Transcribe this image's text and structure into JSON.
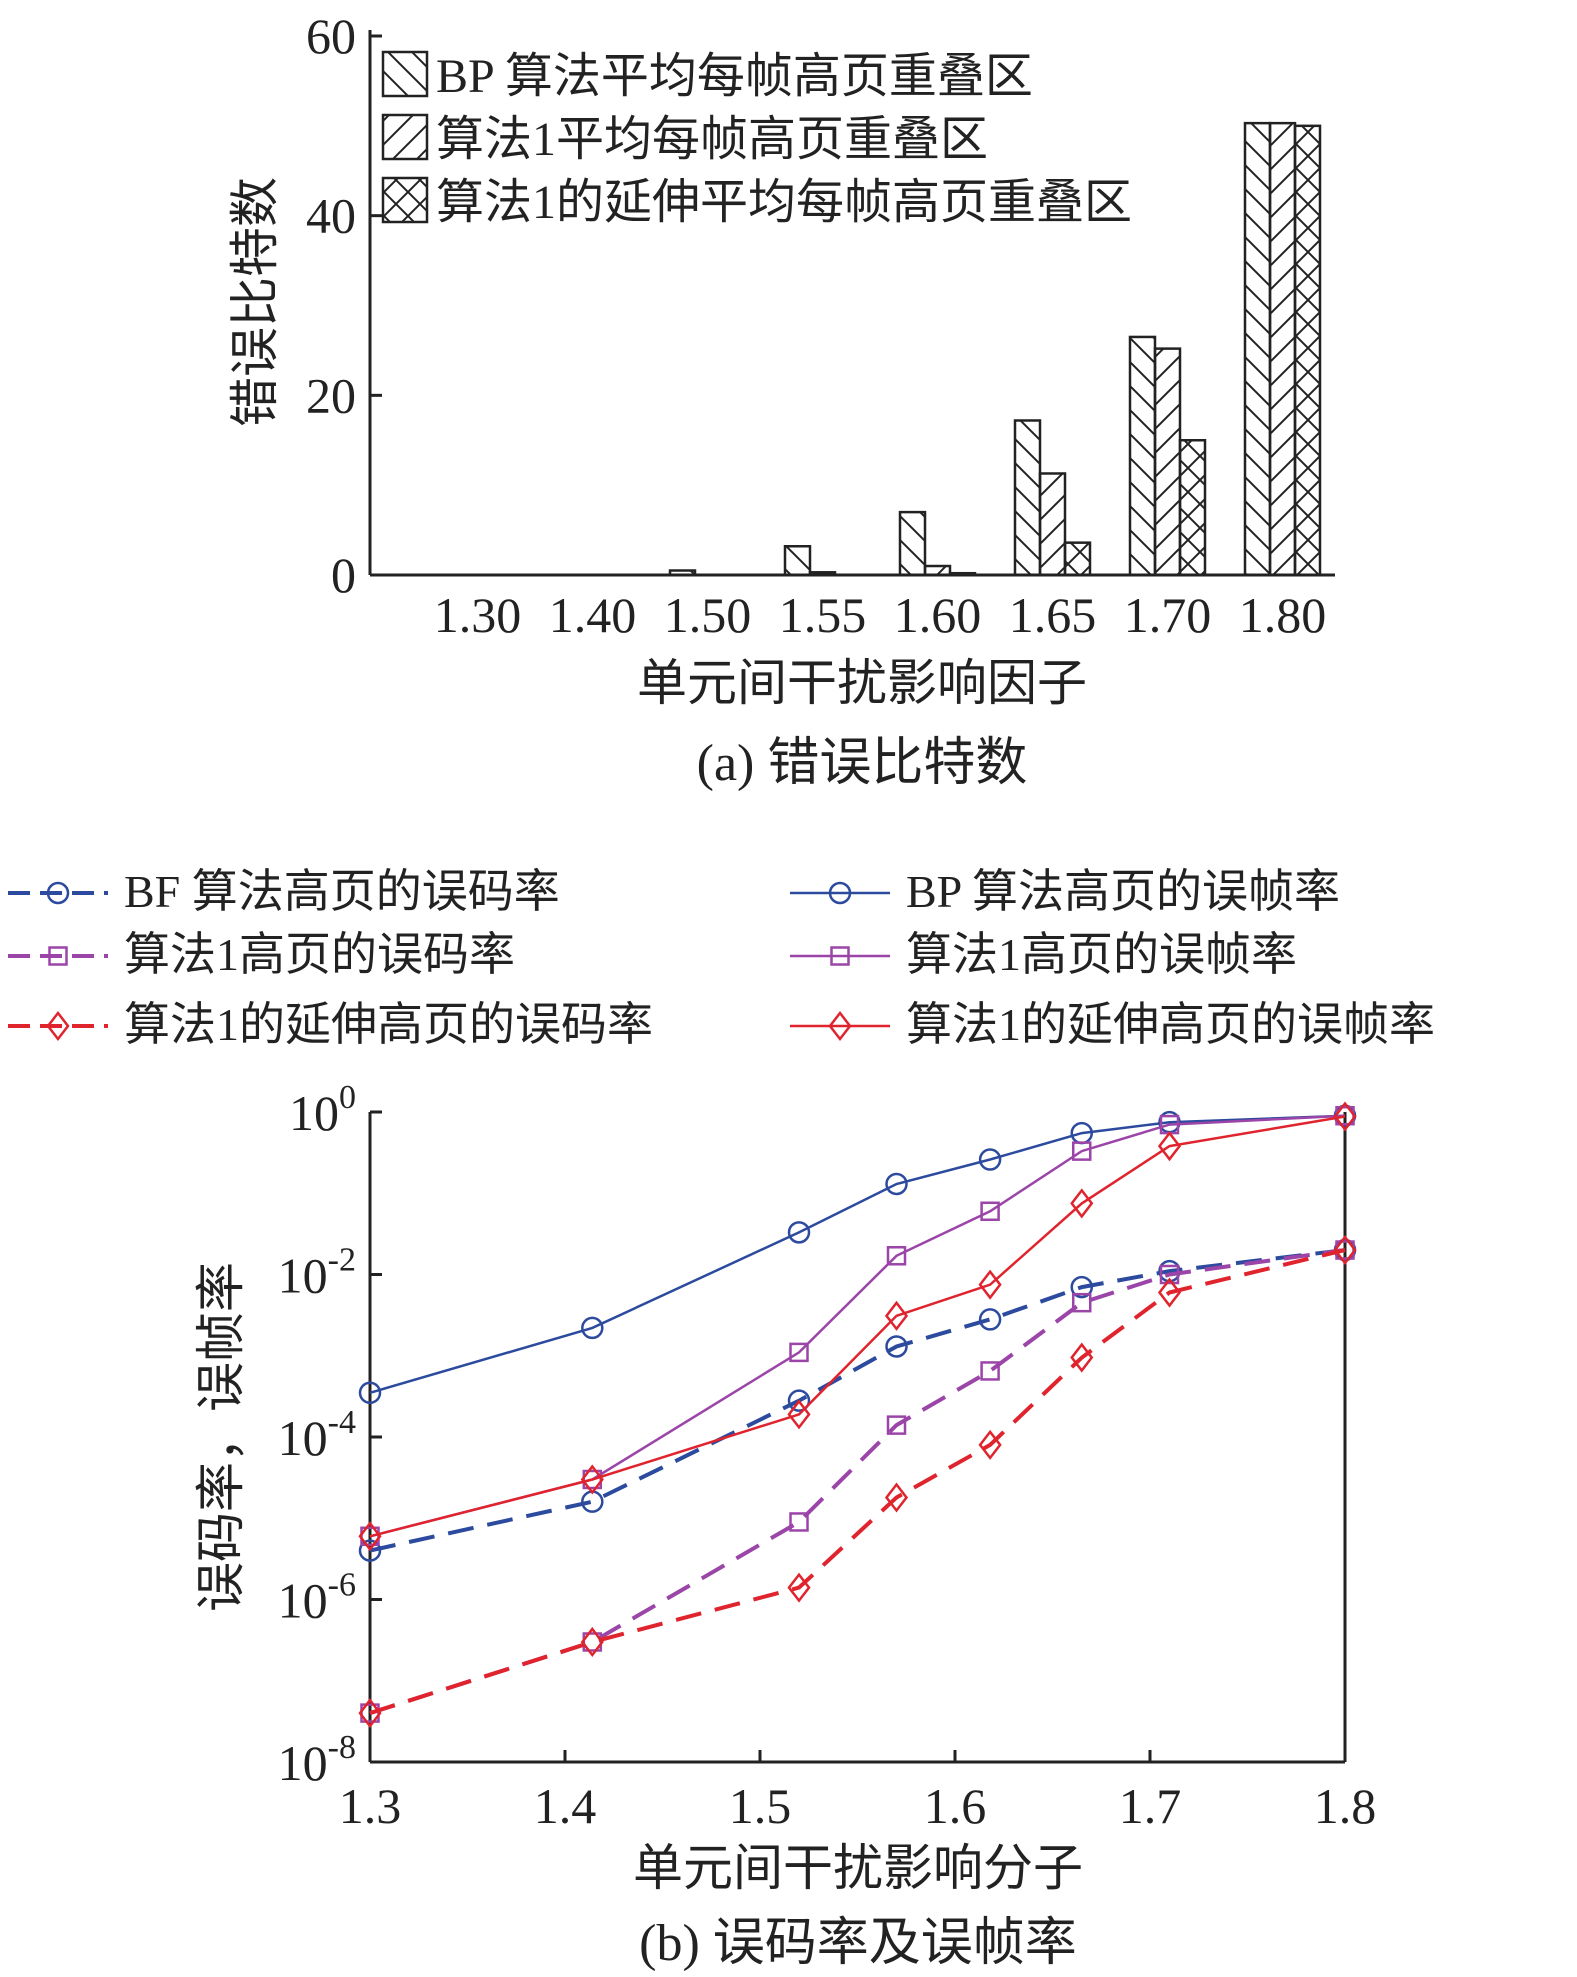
{
  "chart_data": [
    {
      "type": "bar",
      "caption": "(a) 错误比特数",
      "xlabel": "单元间干扰影响因子",
      "ylabel": "错误比特数",
      "ylim": [
        0,
        60
      ],
      "yticks": [
        "0",
        "20",
        "40",
        "60"
      ],
      "categories": [
        "1.30",
        "1.40",
        "1.50",
        "1.55",
        "1.60",
        "1.65",
        "1.70",
        "1.80"
      ],
      "legend_position": "top-left",
      "series": [
        {
          "name": "BP 算法平均每帧高页重叠区",
          "pattern": "diag-back",
          "values": [
            0,
            0,
            0.5,
            3.2,
            7.0,
            17.2,
            26.5,
            50.3
          ]
        },
        {
          "name": "算法1平均每帧高页重叠区",
          "pattern": "diag-fwd",
          "values": [
            0,
            0,
            0,
            0.3,
            1.0,
            11.3,
            25.2,
            50.3
          ]
        },
        {
          "name": "算法1的延伸平均每帧高页重叠区",
          "pattern": "cross",
          "values": [
            0,
            0,
            0,
            0,
            0.2,
            3.6,
            15.0,
            50.0
          ]
        }
      ]
    },
    {
      "type": "line",
      "caption": "(b) 误码率及误帧率",
      "xlabel": "单元间干扰影响分子",
      "ylabel": "误码率，误帧率",
      "xlim": [
        1.3,
        1.8
      ],
      "xticks": [
        "1.3",
        "1.4",
        "1.5",
        "1.6",
        "1.7",
        "1.8"
      ],
      "ylim": [
        1e-08,
        1
      ],
      "yscale": "log",
      "yticks": [
        {
          "base": "10",
          "exp": "0"
        },
        {
          "base": "10",
          "exp": "-2"
        },
        {
          "base": "10",
          "exp": "-4"
        },
        {
          "base": "10",
          "exp": "-6"
        },
        {
          "base": "10",
          "exp": "-8"
        }
      ],
      "legend_position": "top",
      "x": [
        1.3,
        1.414,
        1.52,
        1.57,
        1.618,
        1.665,
        1.71,
        1.8
      ],
      "series": [
        {
          "name": "BF 算法高页的误码率",
          "color": "#2c4a9e",
          "dash": true,
          "marker": "circle",
          "values": [
            4e-06,
            1.6e-05,
            0.00028,
            0.0013,
            0.0028,
            0.007,
            0.011,
            0.02
          ]
        },
        {
          "name": "算法1高页的误码率",
          "color": "#9b45a8",
          "dash": true,
          "marker": "square",
          "values": [
            4e-08,
            3e-07,
            9e-06,
            0.00014,
            0.00065,
            0.0045,
            0.01,
            0.02
          ]
        },
        {
          "name": "算法1的延伸高页的误码率",
          "color": "#e0242e",
          "dash": true,
          "marker": "diamond",
          "values": [
            4e-08,
            3e-07,
            1.4e-06,
            1.8e-05,
            8e-05,
            0.00095,
            0.006,
            0.02
          ]
        },
        {
          "name": "BP 算法高页的误帧率",
          "color": "#2c4a9e",
          "dash": false,
          "marker": "circle",
          "values": [
            0.00035,
            0.0022,
            0.033,
            0.13,
            0.26,
            0.55,
            0.75,
            0.9
          ]
        },
        {
          "name": "算法1高页的误帧率",
          "color": "#9b45a8",
          "dash": false,
          "marker": "square",
          "values": [
            6e-06,
            3e-05,
            0.0011,
            0.017,
            0.06,
            0.33,
            0.7,
            0.9
          ]
        },
        {
          "name": "算法1的延伸高页的误帧率",
          "color": "#e0242e",
          "dash": false,
          "marker": "diamond",
          "values": [
            6e-06,
            3e-05,
            0.00019,
            0.0031,
            0.0075,
            0.075,
            0.38,
            0.88
          ]
        }
      ]
    }
  ]
}
